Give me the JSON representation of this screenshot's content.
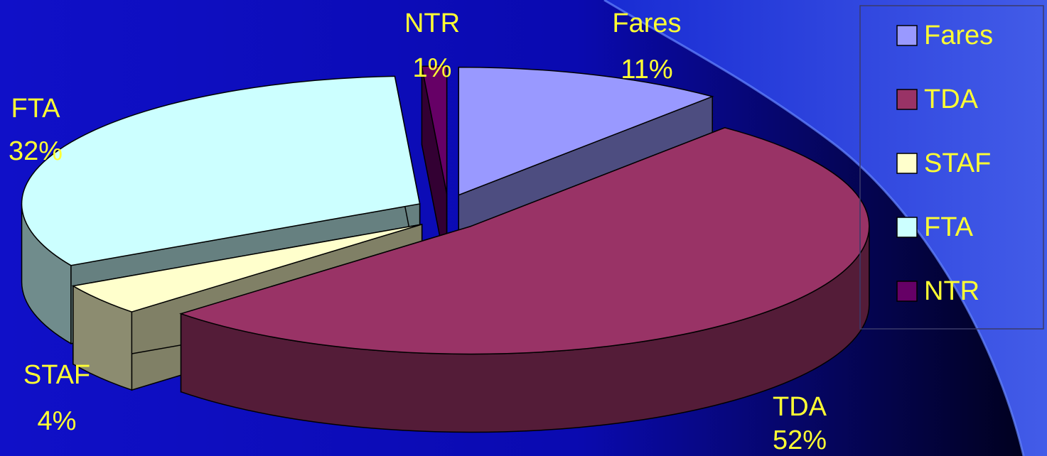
{
  "colors": {
    "label_text": "#ffff33",
    "outline": "#000000",
    "swirl": "#3355ff"
  },
  "chart_data": {
    "type": "pie",
    "title": "",
    "three_d": true,
    "exploded": true,
    "legend_position": "right",
    "slices": [
      {
        "name": "Fares",
        "value": 11,
        "label": "11%",
        "color": "#9999ff"
      },
      {
        "name": "TDA",
        "value": 52,
        "label": "52%",
        "color": "#993366"
      },
      {
        "name": "STAF",
        "value": 4,
        "label": "4%",
        "color": "#ffffcc"
      },
      {
        "name": "FTA",
        "value": 32,
        "label": "32%",
        "color": "#ccffff"
      },
      {
        "name": "NTR",
        "value": 1,
        "label": "1%",
        "color": "#660066"
      }
    ]
  }
}
